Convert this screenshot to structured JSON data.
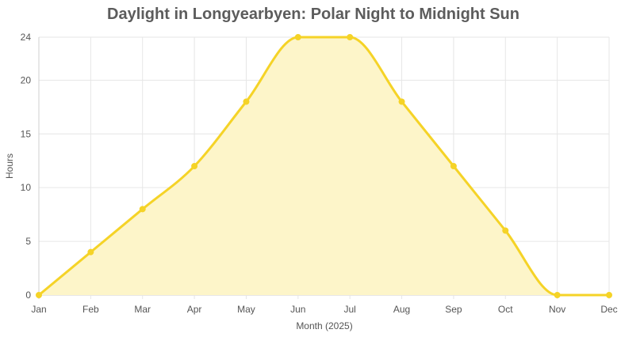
{
  "chart_data": {
    "type": "area",
    "title": "Daylight in Longyearbyen: Polar Night to Midnight Sun",
    "xlabel": "Month (2025)",
    "ylabel": "Hours",
    "categories": [
      "Jan",
      "Feb",
      "Mar",
      "Apr",
      "May",
      "Jun",
      "Jul",
      "Aug",
      "Sep",
      "Oct",
      "Nov",
      "Dec"
    ],
    "series": [
      {
        "values": [
          0,
          4,
          8,
          12,
          18,
          24,
          24,
          18,
          12,
          6,
          0,
          0
        ],
        "color": "#f5d327",
        "fill": "#fdf5c9"
      }
    ],
    "ylim": [
      0,
      24
    ],
    "yticks": [
      0,
      5,
      10,
      15,
      20,
      24
    ],
    "grid": true,
    "legend": "none"
  }
}
